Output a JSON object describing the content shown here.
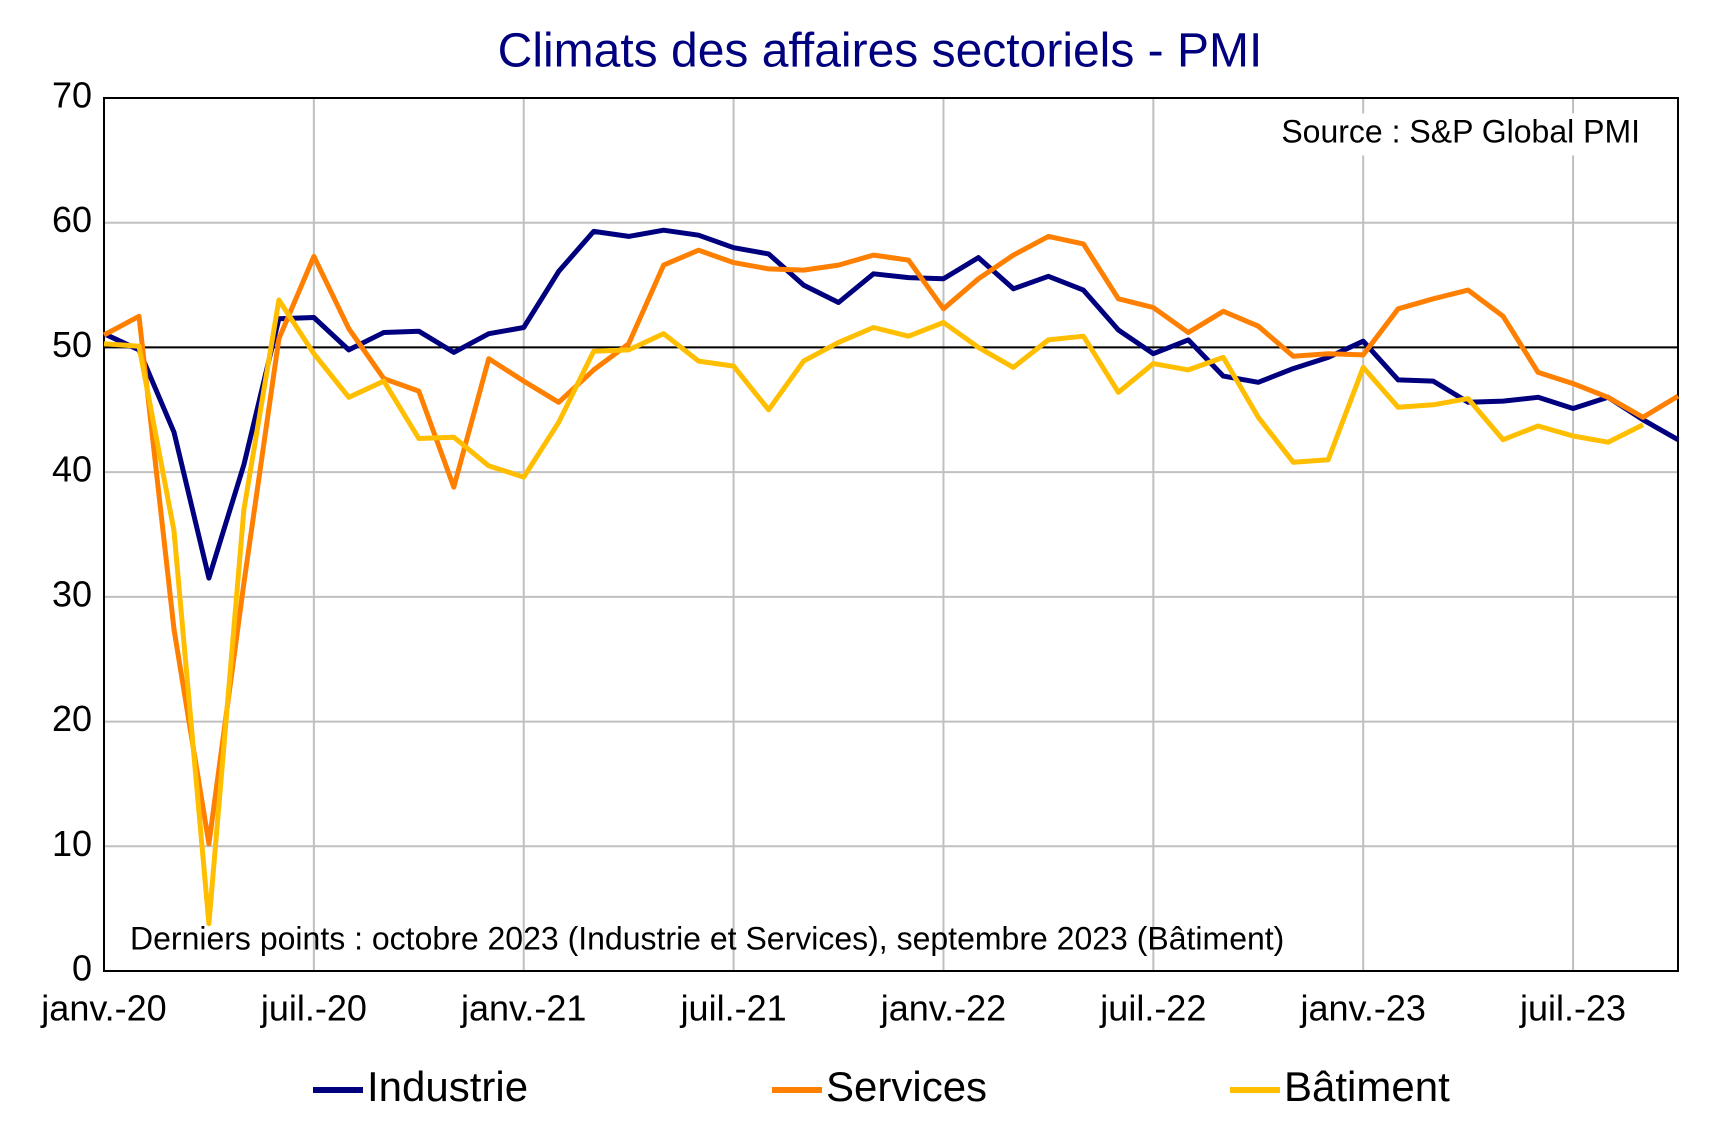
{
  "chart_data": {
    "type": "line",
    "title": "Climats des affaires sectoriels  - PMI",
    "source": "Source : S&P Global PMI",
    "note": "Derniers points : octobre 2023 (Industrie et Services), septembre 2023 (Bâtiment)",
    "categories": [
      "janv.-20",
      null,
      null,
      null,
      null,
      null,
      "juil.-20",
      null,
      null,
      null,
      null,
      null,
      "janv.-21",
      null,
      null,
      null,
      null,
      null,
      "juil.-21",
      null,
      null,
      null,
      null,
      null,
      "janv.-22",
      null,
      null,
      null,
      null,
      null,
      "juil.-22",
      null,
      null,
      null,
      null,
      null,
      "janv.-23",
      null,
      null,
      null,
      null,
      null,
      "juil.-23",
      null,
      null,
      null
    ],
    "series": [
      {
        "name": "Industrie",
        "color": "#00007f",
        "values": [
          51.1,
          49.8,
          43.2,
          31.5,
          40.6,
          52.3,
          52.4,
          49.8,
          51.2,
          51.3,
          49.6,
          51.1,
          51.6,
          56.1,
          59.3,
          58.9,
          59.4,
          59.0,
          58.0,
          57.5,
          55.0,
          53.6,
          55.9,
          55.6,
          55.5,
          57.2,
          54.7,
          55.7,
          54.6,
          51.4,
          49.5,
          50.6,
          47.7,
          47.2,
          48.3,
          49.2,
          50.5,
          47.4,
          47.3,
          45.6,
          45.7,
          46.0,
          45.1,
          46.0,
          44.2,
          42.6
        ]
      },
      {
        "name": "Services",
        "color": "#ff7f00",
        "values": [
          51.0,
          52.5,
          27.4,
          10.2,
          31.1,
          50.7,
          57.3,
          51.5,
          47.5,
          46.5,
          38.8,
          49.1,
          47.3,
          45.6,
          48.2,
          50.3,
          56.6,
          57.8,
          56.8,
          56.3,
          56.2,
          56.6,
          57.4,
          57.0,
          53.1,
          55.5,
          57.4,
          58.9,
          58.3,
          53.9,
          53.2,
          51.2,
          52.9,
          51.7,
          49.3,
          49.5,
          49.4,
          53.1,
          53.9,
          54.6,
          52.5,
          48.0,
          47.1,
          46.0,
          44.4,
          46.1
        ]
      },
      {
        "name": "Bâtiment",
        "color": "#ffbf00",
        "values": [
          50.3,
          50.1,
          35.3,
          3.8,
          37.0,
          53.8,
          49.5,
          46.0,
          47.3,
          42.7,
          42.8,
          40.5,
          39.6,
          44.0,
          49.7,
          49.8,
          51.1,
          48.9,
          48.5,
          45.0,
          48.9,
          50.4,
          51.6,
          50.9,
          52.0,
          50.0,
          48.4,
          50.6,
          50.9,
          46.4,
          48.7,
          48.2,
          49.2,
          44.4,
          40.8,
          41.0,
          48.4,
          45.2,
          45.4,
          45.9,
          42.6,
          43.7,
          42.9,
          42.4,
          43.8,
          null
        ]
      }
    ],
    "reference_line": 50,
    "ylim": [
      0,
      70
    ],
    "yticks": [
      0,
      10,
      20,
      30,
      40,
      50,
      60,
      70
    ],
    "grid": true
  }
}
